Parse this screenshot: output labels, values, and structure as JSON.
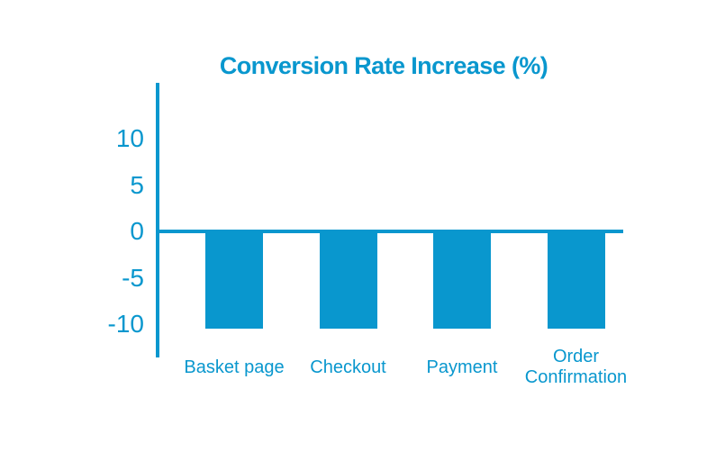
{
  "chart_data": {
    "type": "bar",
    "title": "Conversion Rate Increase (%)",
    "categories": [
      "Basket page",
      "Checkout",
      "Payment",
      "Order Confirmation"
    ],
    "values": [
      -10.5,
      -10.5,
      -10.5,
      -10.5
    ],
    "yticks": [
      10,
      5,
      0,
      -5,
      -10
    ],
    "ylim": [
      -13.5,
      16
    ],
    "xlabel": "",
    "ylabel": "",
    "bar_color": "#0997CE",
    "axis_color": "#0997CE",
    "text_color": "#0997CE",
    "background": "#FFFFFF",
    "grid": false,
    "legend": null,
    "notes": "single series, all four bars equal, extending below the zero baseline"
  }
}
